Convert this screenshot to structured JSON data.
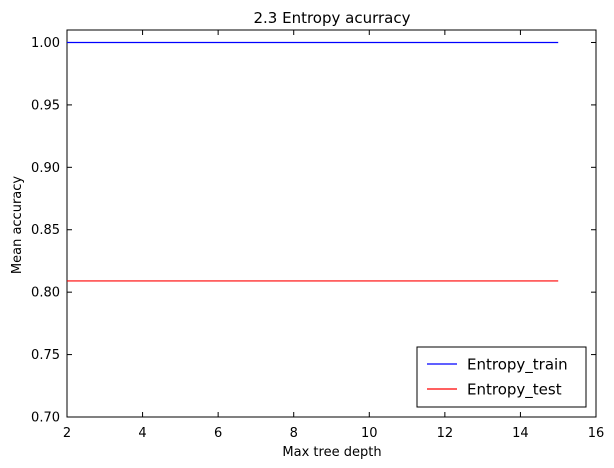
{
  "chart_data": {
    "type": "line",
    "title": "2.3 Entropy acurracy",
    "xlabel": "Max tree depth",
    "ylabel": "Mean accuracy",
    "xlim": [
      2,
      16
    ],
    "ylim": [
      0.7,
      1.01
    ],
    "xticks": [
      2,
      4,
      6,
      8,
      10,
      12,
      14,
      16
    ],
    "yticks": [
      0.7,
      0.75,
      0.8,
      0.85,
      0.9,
      0.95,
      1.0
    ],
    "xtick_labels": [
      "2",
      "4",
      "6",
      "8",
      "10",
      "12",
      "14",
      "16"
    ],
    "ytick_labels": [
      "0.70",
      "0.75",
      "0.80",
      "0.85",
      "0.90",
      "0.95",
      "1.00"
    ],
    "grid": false,
    "legend_position": "bottom-right",
    "series": [
      {
        "name": "Entropy_train",
        "color": "#0000ff",
        "x": [
          2,
          3,
          4,
          5,
          6,
          7,
          8,
          9,
          10,
          11,
          12,
          13,
          14,
          15
        ],
        "y": [
          1.0,
          1.0,
          1.0,
          1.0,
          1.0,
          1.0,
          1.0,
          1.0,
          1.0,
          1.0,
          1.0,
          1.0,
          1.0,
          1.0
        ]
      },
      {
        "name": "Entropy_test",
        "color": "#ff0000",
        "x": [
          2,
          3,
          4,
          5,
          6,
          7,
          8,
          9,
          10,
          11,
          12,
          13,
          14,
          15
        ],
        "y": [
          0.809,
          0.809,
          0.809,
          0.809,
          0.809,
          0.809,
          0.809,
          0.809,
          0.809,
          0.809,
          0.809,
          0.809,
          0.809,
          0.809
        ]
      }
    ]
  }
}
